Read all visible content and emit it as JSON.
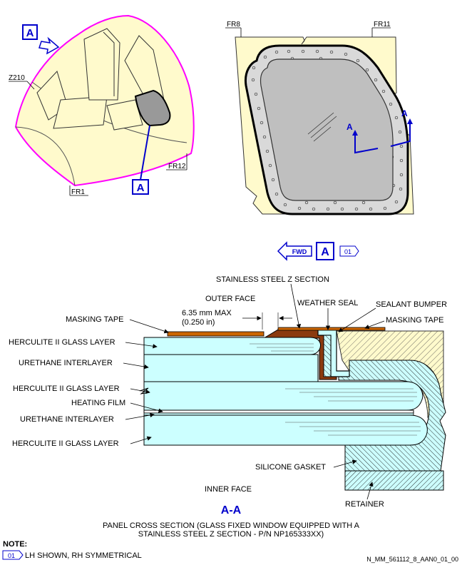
{
  "overview": {
    "view_marker": "A",
    "section_marker": "A",
    "frame_z210": "Z210",
    "frame_fr12": "FR12",
    "frame_fr1": "FR1"
  },
  "window_view": {
    "frame_fr8": "FR8",
    "frame_fr11": "FR11",
    "cut_marker_left": "A",
    "cut_marker_right": "A"
  },
  "orientation": {
    "fwd_label": "FWD",
    "view_marker": "A",
    "note_ref": "01"
  },
  "cross_section": {
    "labels": {
      "stainless_z": "STAINLESS STEEL Z SECTION",
      "outer_face": "OUTER FACE",
      "weather_seal": "WEATHER SEAL",
      "sealant_bumper": "SEALANT BUMPER",
      "masking_tape_left": "MASKING TAPE",
      "masking_tape_right": "MASKING TAPE",
      "dimension_mm": "6.35 mm MAX",
      "dimension_in": "(0.250 in)",
      "glass_layer_1": "HERCULITE II GLASS LAYER",
      "urethane_1": "URETHANE INTERLAYER",
      "glass_layer_2": "HERCULITE II GLASS LAYER",
      "heating_film": "HEATING FILM",
      "urethane_2": "URETHANE INTERLAYER",
      "glass_layer_3": "HERCULITE II GLASS LAYER",
      "silicone_gasket": "SILICONE GASKET",
      "inner_face": "INNER FACE",
      "retainer": "RETAINER"
    },
    "section_title": "A-A",
    "caption_line1": "PANEL CROSS SECTION (GLASS FIXED WINDOW EQUIPPED WITH A",
    "caption_line2": "STAINLESS STEEL Z SECTION - P/N NP165333XX)"
  },
  "notes": {
    "heading": "NOTE:",
    "item_ref": "01",
    "item_text": "LH SHOWN, RH SYMMETRICAL"
  },
  "figure_id": "N_MM_561112_8_AAN0_01_00",
  "colors": {
    "accent_blue": "#0000cc",
    "structure_fill": "#fffacc",
    "outline_magenta": "#ff00ff",
    "glass_fill": "#ccffff",
    "seal_brown": "#8b3a0f",
    "tape_orange": "#cc6600"
  }
}
